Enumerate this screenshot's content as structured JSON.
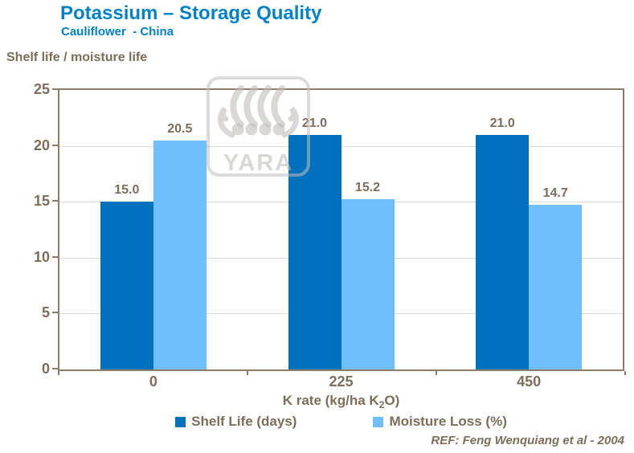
{
  "header": {
    "title": "Potassium – Storage Quality",
    "subtitle": "Cauliflower  - China"
  },
  "chart_data": {
    "type": "bar",
    "title": "Shelf life / moisture life",
    "categories": [
      "0",
      "225",
      "450"
    ],
    "series": [
      {
        "name": "Shelf Life (days)",
        "color": "#0072BD",
        "values": [
          15.0,
          21.0,
          21.0
        ],
        "labels": [
          "15.0",
          "21.0",
          "21.0"
        ]
      },
      {
        "name": "Moisture Loss (%)",
        "color": "#6DBEF9",
        "values": [
          20.5,
          15.2,
          14.7
        ],
        "labels": [
          "20.5",
          "15.2",
          "14.7"
        ]
      }
    ],
    "xlabel": "K rate (kg/ha K2O)",
    "xlabel_parts": {
      "pre": "K rate (kg/ha K",
      "sub": "2",
      "post": "O)"
    },
    "ylabel": "Shelf life / moisture life",
    "ylim": [
      0,
      25
    ],
    "yticks": [
      25,
      20,
      15,
      10,
      5,
      0
    ],
    "grid": true,
    "legend_position": "bottom"
  },
  "footer": {
    "reference": "REF: Feng Wenquiang et al - 2004"
  },
  "watermark": {
    "text": "YARA"
  },
  "colors": {
    "title_blue": "#0082C9",
    "axis_text_brown": "#7D6D59",
    "frame_brown": "#8C7C68",
    "gridline": "#DCD8D2",
    "series_dark_blue": "#0072BD",
    "series_light_blue": "#6DBEF9"
  }
}
